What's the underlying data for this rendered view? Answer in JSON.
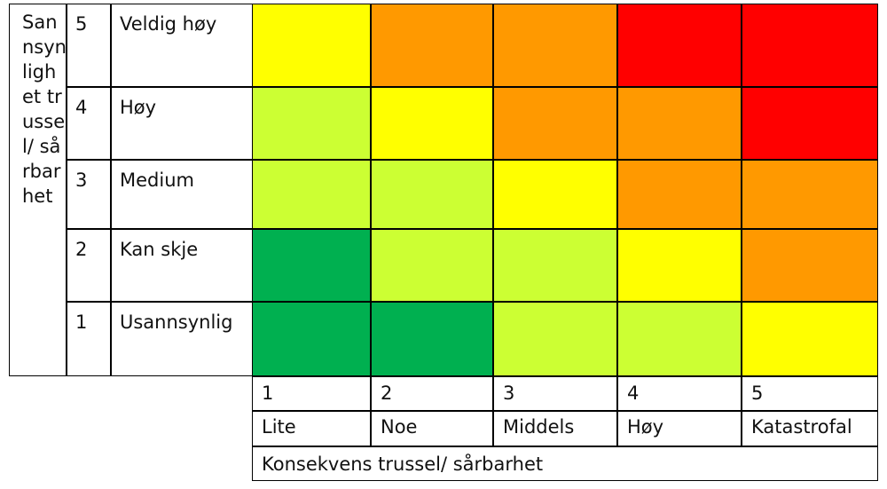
{
  "y_axis": {
    "label": "Sannsynlighet trussel/ sårbarhet",
    "levels": [
      {
        "num": "5",
        "label": "Veldig høy"
      },
      {
        "num": "4",
        "label": "Høy"
      },
      {
        "num": "3",
        "label": "Medium"
      },
      {
        "num": "2",
        "label": "Kan skje"
      },
      {
        "num": "1",
        "label": "Usannsynlig"
      }
    ]
  },
  "x_axis": {
    "label": "Konsekvens trussel/ sårbarhet",
    "levels": [
      {
        "num": "1",
        "label": "Lite"
      },
      {
        "num": "2",
        "label": "Noe"
      },
      {
        "num": "3",
        "label": "Middels"
      },
      {
        "num": "4",
        "label": "Høy"
      },
      {
        "num": "5",
        "label": "Katastrofal"
      }
    ]
  },
  "colors": {
    "dark_green": "#00b050",
    "light_green": "#ccff33",
    "yellow": "#ffff00",
    "orange": "#ff9900",
    "red": "#ff0000"
  },
  "matrix_colors": [
    [
      "yellow",
      "orange",
      "orange",
      "red",
      "red"
    ],
    [
      "light_green",
      "yellow",
      "orange",
      "orange",
      "red"
    ],
    [
      "light_green",
      "light_green",
      "yellow",
      "orange",
      "orange"
    ],
    [
      "dark_green",
      "light_green",
      "light_green",
      "yellow",
      "orange"
    ],
    [
      "dark_green",
      "dark_green",
      "light_green",
      "light_green",
      "yellow"
    ]
  ]
}
